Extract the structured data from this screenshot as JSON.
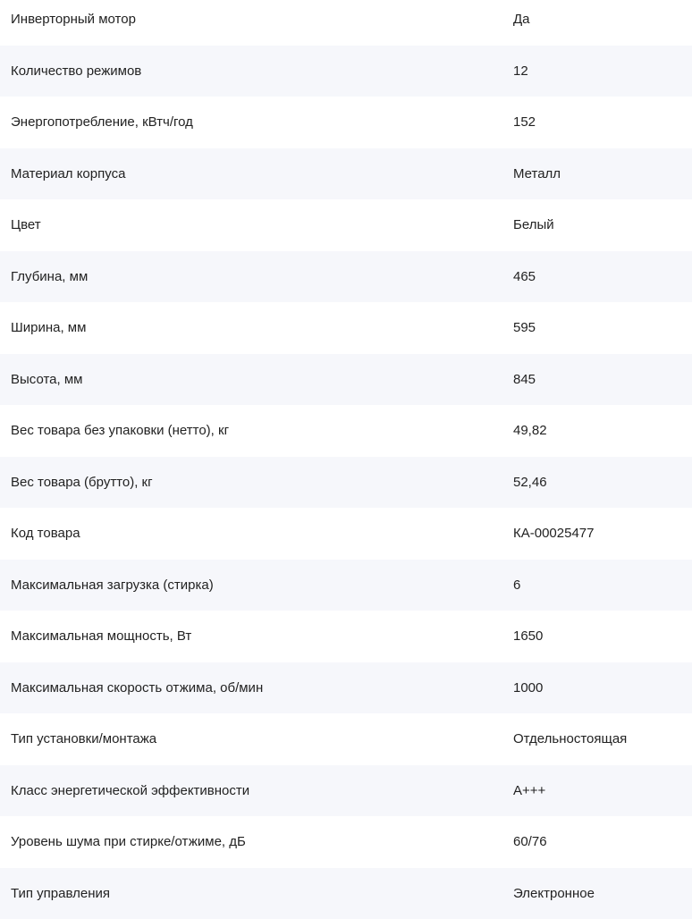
{
  "specs": [
    {
      "name": "Инверторный мотор",
      "value": "Да"
    },
    {
      "name": "Количество режимов",
      "value": "12"
    },
    {
      "name": "Энергопотребление, кВтч/год",
      "value": "152"
    },
    {
      "name": "Материал корпуса",
      "value": "Металл"
    },
    {
      "name": "Цвет",
      "value": "Белый"
    },
    {
      "name": "Глубина, мм",
      "value": "465"
    },
    {
      "name": "Ширина, мм",
      "value": "595"
    },
    {
      "name": "Высота, мм",
      "value": "845"
    },
    {
      "name": "Вес товара без упаковки (нетто), кг",
      "value": "49,82"
    },
    {
      "name": "Вес товара (брутто), кг",
      "value": "52,46"
    },
    {
      "name": "Код товара",
      "value": "КА-00025477"
    },
    {
      "name": "Максимальная загрузка (стирка)",
      "value": "6"
    },
    {
      "name": "Максимальная мощность, Вт",
      "value": "1650"
    },
    {
      "name": "Максимальная скорость отжима, об/мин",
      "value": "1000"
    },
    {
      "name": "Тип установки/монтажа",
      "value": "Отдельностоящая"
    },
    {
      "name": "Класс энергетической эффективности",
      "value": "A+++"
    },
    {
      "name": "Уровень шума при стирке/отжиме, дБ",
      "value": "60/76"
    },
    {
      "name": "Тип управления",
      "value": "Электронное"
    }
  ]
}
